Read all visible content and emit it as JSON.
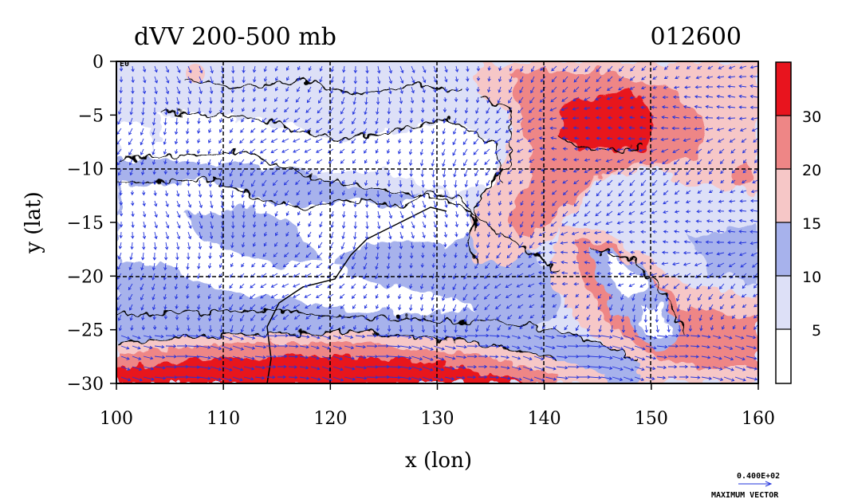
{
  "title_left": "dVV 200-500 mb",
  "title_right": "012600",
  "xlabel": "x (lon)",
  "ylabel": "y (lat)",
  "x_ticks": [
    "100",
    "110",
    "120",
    "130",
    "140",
    "150",
    "160"
  ],
  "y_ticks": [
    "0",
    "−5",
    "−10",
    "−15",
    "−20",
    "−25",
    "−30"
  ],
  "colorbar_labels": [
    "5",
    "10",
    "15",
    "20",
    "30"
  ],
  "colors": {
    "level_0_5": "#ffffff",
    "level_5_10": "#dde0f7",
    "level_10_15": "#a7b2ec",
    "level_15_20": "#f6c7c7",
    "level_20_30": "#ee8686",
    "level_30_plus": "#e8141e",
    "vector": "#2233dd",
    "contour": "#000000"
  },
  "vector_key_value": "0.400E+02",
  "vector_key_label": "MAXIMUM VECTOR",
  "corner_label": "E0"
}
